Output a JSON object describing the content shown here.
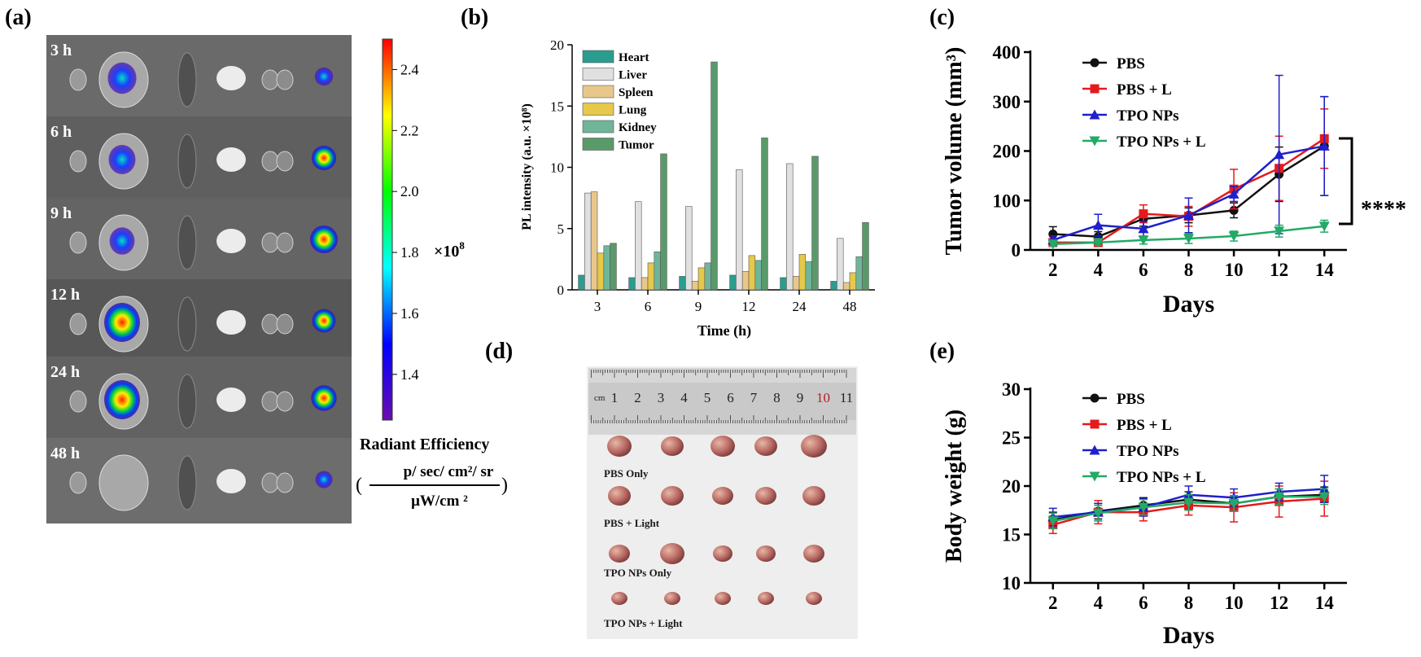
{
  "panels": {
    "a": {
      "label": "(a)",
      "times": [
        "3 h",
        "6 h",
        "9 h",
        "12 h",
        "24 h",
        "48 h"
      ],
      "colorbar": {
        "ticks": [
          "2.4",
          "2.2",
          "2.0",
          "1.8",
          "1.6",
          "1.4"
        ],
        "scale": "×10",
        "scale_exp": "8",
        "title": "Radiant Efficiency",
        "numerator": "p/ sec/ cm²/ sr",
        "denominator": "μW/cm ²",
        "paren_open": "(",
        "paren_close": ")",
        "colors": [
          "#ff0000",
          "#ffff00",
          "#00ff00",
          "#00ffff",
          "#0000ff",
          "#6a0dad"
        ]
      }
    },
    "b": {
      "label": "(b)"
    },
    "c": {
      "label": "(c)",
      "significance": "****"
    },
    "d": {
      "label": "(d)",
      "ruler_unit": "cm",
      "ruler_numbers": [
        "1",
        "2",
        "3",
        "4",
        "5",
        "6",
        "7",
        "8",
        "9",
        "10",
        "11"
      ],
      "row_labels": [
        "PBS Only",
        "PBS + Light",
        "TPO NPs Only",
        "TPO NPs + Light"
      ]
    },
    "e": {
      "label": "(e)"
    }
  },
  "chart_data": [
    {
      "id": "b",
      "type": "bar",
      "ylabel": "PL intensity (a.u. ×10⁸)",
      "xlabel": "Time (h)",
      "categories": [
        "3",
        "6",
        "9",
        "12",
        "24",
        "48"
      ],
      "ylim": [
        0,
        20
      ],
      "yticks": [
        0,
        5,
        10,
        15,
        20
      ],
      "legend": "top-left",
      "series": [
        {
          "name": "Heart",
          "color": "#2a9d8f",
          "values": [
            1.2,
            1.0,
            1.1,
            1.2,
            1.0,
            0.7
          ]
        },
        {
          "name": "Liver",
          "color": "#e0e0e0",
          "values": [
            7.9,
            7.2,
            6.8,
            9.8,
            10.3,
            4.2
          ]
        },
        {
          "name": "Spleen",
          "color": "#e8c88a",
          "values": [
            8.0,
            1.0,
            0.7,
            1.5,
            1.1,
            0.6
          ]
        },
        {
          "name": "Lung",
          "color": "#e6c84a",
          "values": [
            3.0,
            2.2,
            1.8,
            2.8,
            2.9,
            1.4
          ]
        },
        {
          "name": "Kidney",
          "color": "#6fb59a",
          "values": [
            3.6,
            3.1,
            2.2,
            2.4,
            2.3,
            2.7
          ]
        },
        {
          "name": "Tumor",
          "color": "#5a9a6a",
          "values": [
            3.8,
            11.1,
            18.6,
            12.4,
            10.9,
            5.5
          ]
        }
      ]
    },
    {
      "id": "c",
      "type": "line",
      "ylabel": "Tumor volume (mm³)",
      "xlabel": "Days",
      "x": [
        2,
        4,
        6,
        8,
        10,
        12,
        14
      ],
      "xlim": [
        1,
        15
      ],
      "ylim": [
        0,
        400
      ],
      "yticks": [
        0,
        100,
        200,
        300,
        400
      ],
      "legend": "top-left",
      "series": [
        {
          "name": "PBS",
          "color": "#111111",
          "marker": "circle",
          "values": [
            32,
            27,
            63,
            70,
            80,
            153,
            210
          ],
          "errors": [
            15,
            10,
            15,
            15,
            15,
            55,
            100
          ]
        },
        {
          "name": "PBS + L",
          "color": "#e41a1c",
          "marker": "square",
          "values": [
            15,
            15,
            73,
            68,
            123,
            165,
            225
          ],
          "errors": [
            8,
            8,
            18,
            20,
            40,
            65,
            60
          ]
        },
        {
          "name": "TPO NPs",
          "color": "#1f1fcc",
          "marker": "triangle",
          "values": [
            20,
            50,
            43,
            70,
            113,
            193,
            210
          ],
          "errors": [
            8,
            22,
            15,
            35,
            15,
            160,
            100
          ]
        },
        {
          "name": "TPO NPs + L",
          "color": "#22aa66",
          "marker": "triangle-down",
          "values": [
            12,
            15,
            20,
            23,
            28,
            38,
            48
          ],
          "errors": [
            4,
            5,
            8,
            10,
            10,
            12,
            12
          ]
        }
      ]
    },
    {
      "id": "e",
      "type": "line",
      "ylabel": "Body weight (g)",
      "xlabel": "Days",
      "x": [
        2,
        4,
        6,
        8,
        10,
        12,
        14
      ],
      "xlim": [
        1,
        15
      ],
      "ylim": [
        10,
        30
      ],
      "yticks": [
        10,
        15,
        20,
        25,
        30
      ],
      "legend": "top-left",
      "series": [
        {
          "name": "PBS",
          "color": "#111111",
          "marker": "circle",
          "values": [
            16.5,
            17.4,
            18.0,
            18.6,
            18.2,
            18.9,
            19.1
          ],
          "errors": [
            0.8,
            0.8,
            0.8,
            0.8,
            0.8,
            0.8,
            0.8
          ]
        },
        {
          "name": "PBS + L",
          "color": "#e41a1c",
          "marker": "square",
          "values": [
            16.0,
            17.3,
            17.3,
            18.0,
            17.8,
            18.4,
            18.7
          ],
          "errors": [
            0.9,
            1.2,
            0.9,
            1.0,
            1.5,
            1.6,
            1.8
          ]
        },
        {
          "name": "TPO NPs",
          "color": "#1f1fcc",
          "marker": "triangle",
          "values": [
            16.8,
            17.3,
            17.8,
            19.1,
            18.8,
            19.4,
            19.7
          ],
          "errors": [
            0.9,
            0.9,
            0.9,
            0.9,
            0.9,
            0.9,
            1.4
          ]
        },
        {
          "name": "TPO NPs + L",
          "color": "#22aa66",
          "marker": "triangle-down",
          "values": [
            16.4,
            17.2,
            17.8,
            18.3,
            18.2,
            18.9,
            18.9
          ],
          "errors": [
            0.8,
            0.8,
            0.8,
            0.8,
            0.8,
            0.8,
            0.8
          ]
        }
      ]
    }
  ]
}
